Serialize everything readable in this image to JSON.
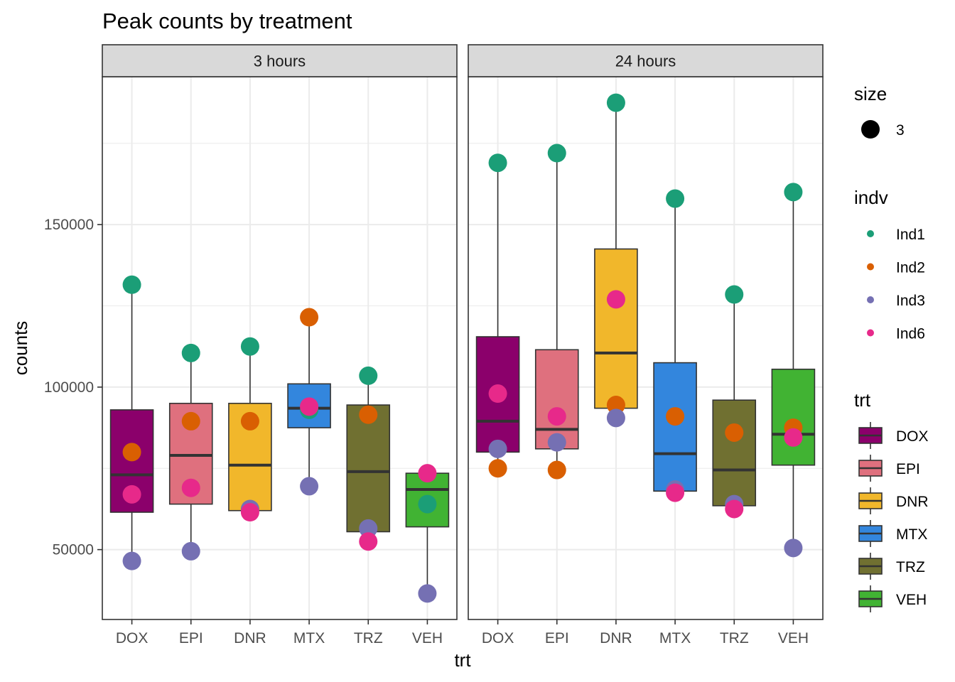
{
  "chart_data": {
    "type": "box",
    "title": "Peak counts by treatment",
    "xlabel": "trt",
    "ylabel": "counts",
    "ylim": [
      28500,
      195500
    ],
    "yticks": [
      50000,
      100000,
      150000
    ],
    "grid": true,
    "legend_position": "right",
    "categories": [
      "DOX",
      "EPI",
      "DNR",
      "MTX",
      "TRZ",
      "VEH"
    ],
    "category_colors": {
      "DOX": "#8B006B",
      "EPI": "#DF707E",
      "DNR": "#F1B72B",
      "MTX": "#3386DD",
      "TRZ": "#707031",
      "VEH": "#41B333"
    },
    "individual_colors": {
      "Ind1": "#1B9E77",
      "Ind2": "#D95F02",
      "Ind3": "#7570B3",
      "Ind6": "#E7298A"
    },
    "panels": [
      {
        "label": "3 hours",
        "boxes": [
          {
            "trt": "DOX",
            "lower": 46500,
            "q1": 61500,
            "median": 73000,
            "q3": 93000,
            "upper": 131500
          },
          {
            "trt": "EPI",
            "lower": 49500,
            "q1": 64000,
            "median": 79000,
            "q3": 95000,
            "upper": 110500
          },
          {
            "trt": "DNR",
            "lower": 61500,
            "q1": 62000,
            "median": 76000,
            "q3": 95000,
            "upper": 112500
          },
          {
            "trt": "MTX",
            "lower": 69500,
            "q1": 87500,
            "median": 93500,
            "q3": 101000,
            "upper": 121500
          },
          {
            "trt": "TRZ",
            "lower": 52500,
            "q1": 55500,
            "median": 74000,
            "q3": 94500,
            "upper": 103500
          },
          {
            "trt": "VEH",
            "lower": 36500,
            "q1": 57000,
            "median": 68500,
            "q3": 73500,
            "upper": 73500
          }
        ],
        "points": [
          {
            "trt": "DOX",
            "indv": "Ind1",
            "counts": 131500
          },
          {
            "trt": "DOX",
            "indv": "Ind2",
            "counts": 80000
          },
          {
            "trt": "DOX",
            "indv": "Ind6",
            "counts": 67000
          },
          {
            "trt": "DOX",
            "indv": "Ind3",
            "counts": 46500
          },
          {
            "trt": "EPI",
            "indv": "Ind1",
            "counts": 110500
          },
          {
            "trt": "EPI",
            "indv": "Ind2",
            "counts": 89500
          },
          {
            "trt": "EPI",
            "indv": "Ind6",
            "counts": 69000
          },
          {
            "trt": "EPI",
            "indv": "Ind3",
            "counts": 49500
          },
          {
            "trt": "DNR",
            "indv": "Ind1",
            "counts": 112500
          },
          {
            "trt": "DNR",
            "indv": "Ind2",
            "counts": 89500
          },
          {
            "trt": "DNR",
            "indv": "Ind3",
            "counts": 62500
          },
          {
            "trt": "DNR",
            "indv": "Ind6",
            "counts": 61500
          },
          {
            "trt": "MTX",
            "indv": "Ind2",
            "counts": 121500
          },
          {
            "trt": "MTX",
            "indv": "Ind1",
            "counts": 93000
          },
          {
            "trt": "MTX",
            "indv": "Ind6",
            "counts": 94000
          },
          {
            "trt": "MTX",
            "indv": "Ind3",
            "counts": 69500
          },
          {
            "trt": "TRZ",
            "indv": "Ind1",
            "counts": 103500
          },
          {
            "trt": "TRZ",
            "indv": "Ind2",
            "counts": 91500
          },
          {
            "trt": "TRZ",
            "indv": "Ind3",
            "counts": 56500
          },
          {
            "trt": "TRZ",
            "indv": "Ind6",
            "counts": 52500
          },
          {
            "trt": "VEH",
            "indv": "Ind6",
            "counts": 73500
          },
          {
            "trt": "VEH",
            "indv": "Ind1",
            "counts": 64000
          },
          {
            "trt": "VEH",
            "indv": "Ind3",
            "counts": 36500
          }
        ]
      },
      {
        "label": "24 hours",
        "boxes": [
          {
            "trt": "DOX",
            "lower": 75000,
            "q1": 80000,
            "median": 89500,
            "q3": 115500,
            "upper": 169000
          },
          {
            "trt": "EPI",
            "lower": 74500,
            "q1": 81000,
            "median": 87000,
            "q3": 111500,
            "upper": 172000
          },
          {
            "trt": "DNR",
            "lower": 90500,
            "q1": 93500,
            "median": 110500,
            "q3": 142500,
            "upper": 187500
          },
          {
            "trt": "MTX",
            "lower": 67500,
            "q1": 68000,
            "median": 79500,
            "q3": 107500,
            "upper": 158000
          },
          {
            "trt": "TRZ",
            "lower": 62500,
            "q1": 63500,
            "median": 74500,
            "q3": 96000,
            "upper": 128500
          },
          {
            "trt": "VEH",
            "lower": 50500,
            "q1": 76000,
            "median": 85500,
            "q3": 105500,
            "upper": 160000
          }
        ],
        "points": [
          {
            "trt": "DOX",
            "indv": "Ind1",
            "counts": 169000
          },
          {
            "trt": "DOX",
            "indv": "Ind6",
            "counts": 98000
          },
          {
            "trt": "DOX",
            "indv": "Ind3",
            "counts": 81000
          },
          {
            "trt": "DOX",
            "indv": "Ind2",
            "counts": 75000
          },
          {
            "trt": "EPI",
            "indv": "Ind1",
            "counts": 172000
          },
          {
            "trt": "EPI",
            "indv": "Ind6",
            "counts": 91000
          },
          {
            "trt": "EPI",
            "indv": "Ind3",
            "counts": 83000
          },
          {
            "trt": "EPI",
            "indv": "Ind2",
            "counts": 74500
          },
          {
            "trt": "DNR",
            "indv": "Ind1",
            "counts": 187500
          },
          {
            "trt": "DNR",
            "indv": "Ind6",
            "counts": 127000
          },
          {
            "trt": "DNR",
            "indv": "Ind2",
            "counts": 94500
          },
          {
            "trt": "DNR",
            "indv": "Ind3",
            "counts": 90500
          },
          {
            "trt": "MTX",
            "indv": "Ind1",
            "counts": 158000
          },
          {
            "trt": "MTX",
            "indv": "Ind2",
            "counts": 91000
          },
          {
            "trt": "MTX",
            "indv": "Ind3",
            "counts": 68500
          },
          {
            "trt": "MTX",
            "indv": "Ind6",
            "counts": 67500
          },
          {
            "trt": "TRZ",
            "indv": "Ind1",
            "counts": 128500
          },
          {
            "trt": "TRZ",
            "indv": "Ind2",
            "counts": 86000
          },
          {
            "trt": "TRZ",
            "indv": "Ind3",
            "counts": 64000
          },
          {
            "trt": "TRZ",
            "indv": "Ind6",
            "counts": 62500
          },
          {
            "trt": "VEH",
            "indv": "Ind1",
            "counts": 160000
          },
          {
            "trt": "VEH",
            "indv": "Ind2",
            "counts": 87500
          },
          {
            "trt": "VEH",
            "indv": "Ind6",
            "counts": 84500
          },
          {
            "trt": "VEH",
            "indv": "Ind3",
            "counts": 50500
          }
        ]
      }
    ],
    "legends": {
      "size": {
        "title": "size",
        "value": "3"
      },
      "indv": {
        "title": "indv",
        "items": [
          "Ind1",
          "Ind2",
          "Ind3",
          "Ind6"
        ]
      },
      "trt": {
        "title": "trt",
        "items": [
          "DOX",
          "EPI",
          "DNR",
          "MTX",
          "TRZ",
          "VEH"
        ]
      }
    }
  }
}
